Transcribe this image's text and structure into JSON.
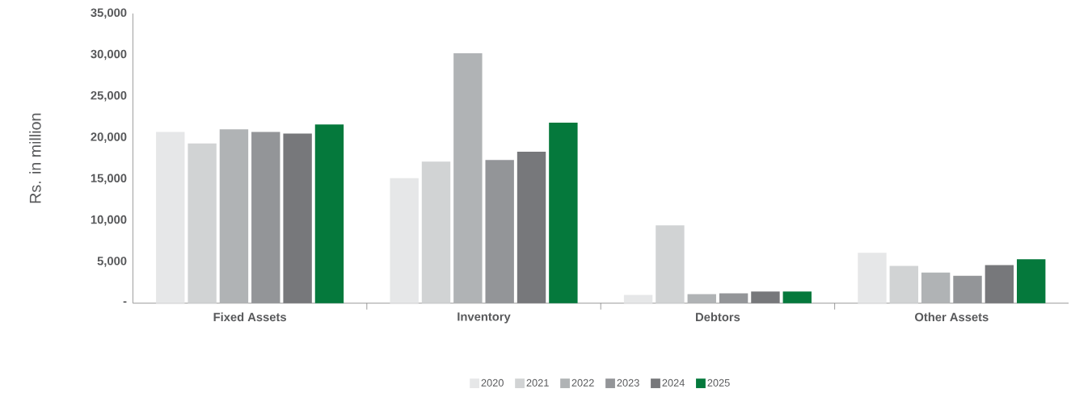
{
  "chart_data": {
    "type": "bar",
    "ylabel": "Rs. in million",
    "categories": [
      "Fixed Assets",
      "Inventory",
      "Debtors",
      "Other Assets"
    ],
    "series": [
      {
        "name": "2020",
        "color": "#e6e7e8",
        "values": [
          20700,
          15100,
          1000,
          6100
        ]
      },
      {
        "name": "2021",
        "color": "#d1d3d4",
        "values": [
          19300,
          17100,
          9400,
          4500
        ]
      },
      {
        "name": "2022",
        "color": "#b0b3b5",
        "values": [
          21000,
          30200,
          1100,
          3700
        ]
      },
      {
        "name": "2023",
        "color": "#939598",
        "values": [
          20700,
          17300,
          1200,
          3300
        ]
      },
      {
        "name": "2024",
        "color": "#77787b",
        "values": [
          20500,
          18300,
          1400,
          4600
        ]
      },
      {
        "name": "2025",
        "color": "#05793c",
        "values": [
          21600,
          21800,
          1400,
          5300
        ]
      }
    ],
    "ylim": [
      0,
      35000
    ],
    "yticks": [
      {
        "value": 0,
        "label": "-"
      },
      {
        "value": 5000,
        "label": "5,000"
      },
      {
        "value": 10000,
        "label": "10,000"
      },
      {
        "value": 15000,
        "label": "15,000"
      },
      {
        "value": 20000,
        "label": "20,000"
      },
      {
        "value": 25000,
        "label": "25,000"
      },
      {
        "value": 30000,
        "label": "30,000"
      },
      {
        "value": 35000,
        "label": "35,000"
      }
    ],
    "legend": "bottom"
  }
}
